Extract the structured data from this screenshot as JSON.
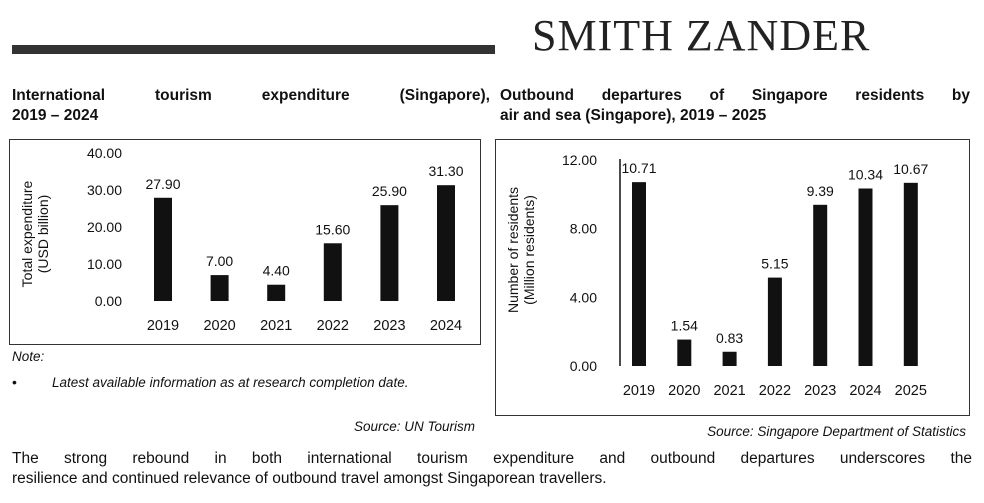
{
  "header": {
    "brand": "SMITH ZANDER"
  },
  "charts": {
    "left": {
      "title_line1": "International tourism expenditure (Singapore),",
      "title_line2": "2019 – 2024",
      "ylabel_line1": "Total expenditure",
      "ylabel_line2": "(USD billion)"
    },
    "right": {
      "title_line1": "Outbound departures of Singapore residents by",
      "title_line2": "air and sea (Singapore), 2019 – 2025",
      "ylabel_line1": "Number of residents",
      "ylabel_line2": "(Million residents)"
    }
  },
  "chart_data": [
    {
      "type": "bar",
      "title": "International tourism expenditure (Singapore), 2019 – 2024",
      "ylabel": "Total expenditure (USD billion)",
      "xlabel": "",
      "categories": [
        "2019",
        "2020",
        "2021",
        "2022",
        "2023",
        "2024"
      ],
      "values": [
        27.9,
        7.0,
        4.4,
        15.6,
        25.9,
        31.3
      ],
      "value_labels": [
        "27.90",
        "7.00",
        "4.40",
        "15.60",
        "25.90",
        "31.30"
      ],
      "ylim": [
        0,
        40
      ],
      "yticks": [
        "0.00",
        "10.00",
        "20.00",
        "30.00",
        "40.00"
      ],
      "grid": false,
      "bar_color": "#111111"
    },
    {
      "type": "bar",
      "title": "Outbound departures of Singapore residents by air and sea (Singapore), 2019 – 2025",
      "ylabel": "Number of residents (Million residents)",
      "xlabel": "",
      "categories": [
        "2019",
        "2020",
        "2021",
        "2022",
        "2023",
        "2024",
        "2025"
      ],
      "values": [
        10.71,
        1.54,
        0.83,
        5.15,
        9.39,
        10.34,
        10.67
      ],
      "value_labels": [
        "10.71",
        "1.54",
        "0.83",
        "5.15",
        "9.39",
        "10.34",
        "10.67"
      ],
      "ylim": [
        0,
        12
      ],
      "yticks": [
        "0.00",
        "4.00",
        "8.00",
        "12.00"
      ],
      "grid": false,
      "bar_color": "#111111"
    }
  ],
  "notes": {
    "heading": "Note:",
    "bullet_symbol": "•",
    "bullet_text": "Latest available information as at research completion date."
  },
  "sources": {
    "left": "Source: UN Tourism",
    "right": "Source: Singapore Department of Statistics"
  },
  "summary": {
    "line1": "The strong rebound in both international tourism expenditure and outbound departures underscores the",
    "line2": "resilience and continued relevance of outbound travel amongst Singaporean travellers."
  }
}
